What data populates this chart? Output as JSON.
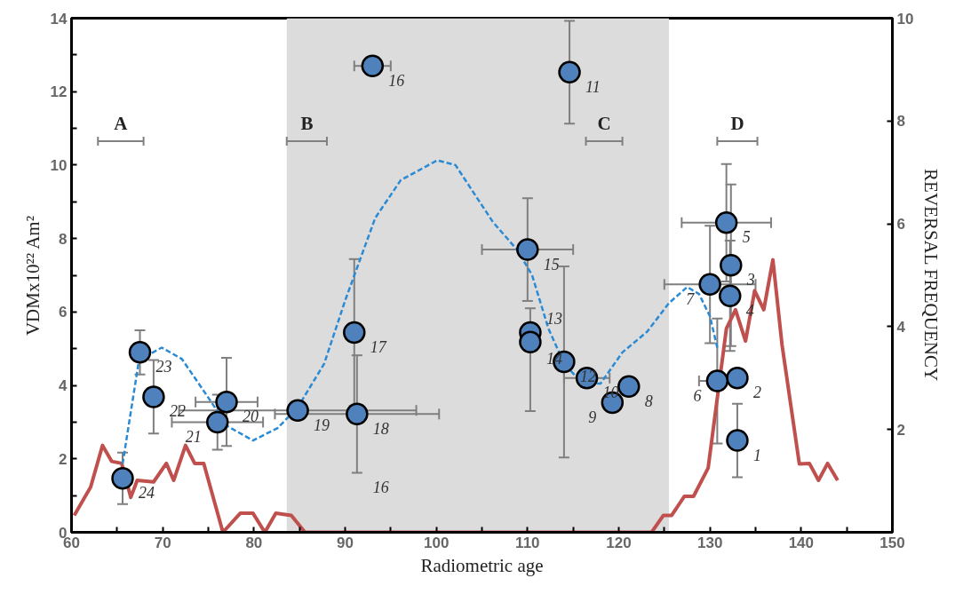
{
  "chart_data": {
    "type": "scatter",
    "xlabel": "Radiometric age",
    "ylabel": "VDMx10²² Am²",
    "y2label": "REVERSAL FREQUENCY",
    "xlim": [
      60,
      150
    ],
    "xticks": [
      60,
      {
        "value": 65,
        "label": null
      },
      70,
      {
        "value": 75,
        "label": null
      },
      80,
      {
        "value": 85,
        "label": null
      },
      90,
      {
        "value": 95,
        "label": null
      },
      100,
      {
        "value": 105,
        "label": null
      },
      110,
      {
        "value": 115,
        "label": null
      },
      120,
      {
        "value": 125,
        "label": null
      },
      130,
      {
        "value": 135,
        "label": null
      },
      140,
      {
        "value": 145,
        "label": null
      },
      150
    ],
    "ylim": [
      0,
      14
    ],
    "yticks": [
      0,
      {
        "value": 1,
        "label": null
      },
      2,
      {
        "value": 3,
        "label": null
      },
      4,
      {
        "value": 5,
        "label": null
      },
      6,
      {
        "value": 7,
        "label": null
      },
      8,
      {
        "value": 9,
        "label": null
      },
      10,
      {
        "value": 11,
        "label": null
      },
      12,
      {
        "value": 13,
        "label": null
      },
      14
    ],
    "y2lim": [
      0,
      10
    ],
    "y2ticks": [
      2,
      4,
      6,
      8,
      10
    ],
    "marker": "circle",
    "bands": [
      {
        "axis": "x",
        "from": 83.6,
        "to": 125.5,
        "color": "#dcdcdc"
      }
    ],
    "series": [
      {
        "type": "line",
        "axis": "y2",
        "color": "#c0504d",
        "line_style": "solid",
        "marker": "none",
        "x": [
          60.3,
          62.1,
          63.4,
          64.4,
          65.5,
          66.5,
          67.2,
          69.0,
          70.4,
          71.2,
          72.5,
          73.5,
          74.5,
          76.6,
          78.5,
          79.9,
          81.2,
          82.4,
          84.1,
          85.6,
          123.6,
          124.9,
          125.8,
          127.2,
          128.2,
          129.8,
          131.8,
          132.8,
          133.9,
          134.9,
          135.9,
          136.9,
          137.9,
          139.8,
          140.9,
          141.9,
          142.9,
          144.0
        ],
        "values": [
          0.33,
          0.88,
          1.69,
          1.38,
          1.34,
          0.68,
          1.01,
          0.98,
          1.34,
          1.01,
          1.69,
          1.34,
          1.34,
          0,
          0.37,
          0.37,
          0,
          0.37,
          0.33,
          0,
          0,
          0.33,
          0.33,
          0.7,
          0.7,
          1.25,
          3.96,
          4.33,
          3.72,
          4.7,
          4.33,
          5.3,
          3.65,
          1.33,
          1.34,
          1.01,
          1.34,
          1.01
        ]
      },
      {
        "type": "line",
        "color": "#2a8ad4",
        "line_style": "dashed",
        "marker": "none",
        "x": [
          65.6,
          67.4,
          69.9,
          72.1,
          74.8,
          77.1,
          79.9,
          82.6,
          84.8,
          87.7,
          90.0,
          93.3,
          96.1,
          100.1,
          102.1,
          106.2,
          108.9,
          110.5,
          112.3,
          114.0,
          116.0,
          118.0,
          120.4,
          123.1,
          125.5,
          127.5,
          128.8,
          130.0,
          130.8
        ],
        "values": [
          1.86,
          4.69,
          5.03,
          4.72,
          3.74,
          2.89,
          2.5,
          2.84,
          3.4,
          4.59,
          6.31,
          8.56,
          9.59,
          10.13,
          10.0,
          8.45,
          7.68,
          7.0,
          5.54,
          4.6,
          4.05,
          4.05,
          4.9,
          5.46,
          6.24,
          6.68,
          6.49,
          5.88,
          5.03
        ]
      },
      {
        "color": "#4f81bd",
        "x": [
          133.0,
          133.0,
          132.3,
          132.2,
          131.8,
          130.8,
          130.0,
          121.1,
          119.3,
          116.5,
          114.6,
          114.0,
          110.3,
          110.3,
          110.0,
          93.0,
          91.0,
          91.3,
          84.8,
          77.0,
          76.0,
          69.0,
          67.5,
          65.6
        ],
        "values": [
          2.5,
          4.2,
          7.27,
          6.44,
          8.43,
          4.12,
          6.75,
          3.97,
          3.53,
          4.2,
          12.53,
          4.64,
          5.44,
          5.18,
          7.7,
          12.7,
          5.44,
          3.22,
          3.32,
          3.55,
          3.0,
          3.69,
          4.9,
          1.47
        ],
        "errors": [
          1.0,
          null,
          2.2,
          1.5,
          1.6,
          1.7,
          1.6,
          null,
          null,
          null,
          1.4,
          2.6,
          null,
          [
            3.3,
            6.1
          ],
          1.4,
          null,
          2.0,
          1.6,
          null,
          1.2,
          0.75,
          1.0,
          0.6,
          0.7
        ],
        "xerrors": [
          null,
          null,
          null,
          null,
          4.9,
          2.0,
          5.0,
          null,
          null,
          2.5,
          null,
          null,
          null,
          null,
          5.0,
          2.0,
          null,
          9.0,
          13.0,
          3.4,
          5.0,
          null,
          null,
          null
        ]
      },
      {
        "type": "line",
        "name": "A",
        "color": "#808080",
        "marker": "none",
        "x": [
          62.9,
          67.9
        ],
        "values": [
          10.65,
          10.65
        ]
      },
      {
        "type": "line",
        "name": "B",
        "color": "#808080",
        "marker": "none",
        "x": [
          83.6,
          88.0
        ],
        "values": [
          10.65,
          10.65
        ]
      },
      {
        "type": "line",
        "name": "C",
        "color": "#808080",
        "marker": "none",
        "x": [
          116.4,
          120.4
        ],
        "values": [
          10.65,
          10.65
        ]
      },
      {
        "type": "line",
        "name": "D",
        "color": "#808080",
        "marker": "none",
        "x": [
          130.8,
          135.2
        ],
        "values": [
          10.65,
          10.65
        ]
      }
    ],
    "annotations": [
      {
        "text": "1",
        "x": 133.0,
        "y": 2.5
      },
      {
        "text": "2",
        "x": 133.0,
        "y": 4.2
      },
      {
        "text": "3",
        "x": 132.3,
        "y": 7.27
      },
      {
        "text": "4",
        "x": 132.2,
        "y": 6.44
      },
      {
        "text": "5",
        "x": 131.8,
        "y": 8.43
      },
      {
        "text": "6",
        "x": 130.8,
        "y": 4.12
      },
      {
        "text": "7",
        "x": 130.0,
        "y": 6.75
      },
      {
        "text": "8",
        "x": 121.1,
        "y": 3.97
      },
      {
        "text": "9",
        "x": 119.3,
        "y": 3.53
      },
      {
        "text": "10",
        "x": 116.5,
        "y": 4.2
      },
      {
        "text": "11",
        "x": 114.6,
        "y": 12.53
      },
      {
        "text": "12",
        "x": 114.0,
        "y": 4.64
      },
      {
        "text": "13",
        "x": 110.3,
        "y": 5.44
      },
      {
        "text": "14",
        "x": 110.3,
        "y": 5.18
      },
      {
        "text": "15",
        "x": 110.0,
        "y": 7.7
      },
      {
        "text": "16",
        "x": 93.0,
        "y": 12.7
      },
      {
        "text": "16",
        "x": 91.3,
        "y": 1.62
      },
      {
        "text": "17",
        "x": 91.0,
        "y": 5.44
      },
      {
        "text": "18",
        "x": 91.3,
        "y": 3.22
      },
      {
        "text": "19",
        "x": 84.8,
        "y": 3.32
      },
      {
        "text": "20",
        "x": 77.0,
        "y": 3.55
      },
      {
        "text": "21",
        "x": 76.0,
        "y": 3.0
      },
      {
        "text": "22",
        "x": 69.0,
        "y": 3.69
      },
      {
        "text": "23",
        "x": 67.5,
        "y": 4.9
      },
      {
        "text": "24",
        "x": 65.6,
        "y": 1.47
      }
    ]
  }
}
